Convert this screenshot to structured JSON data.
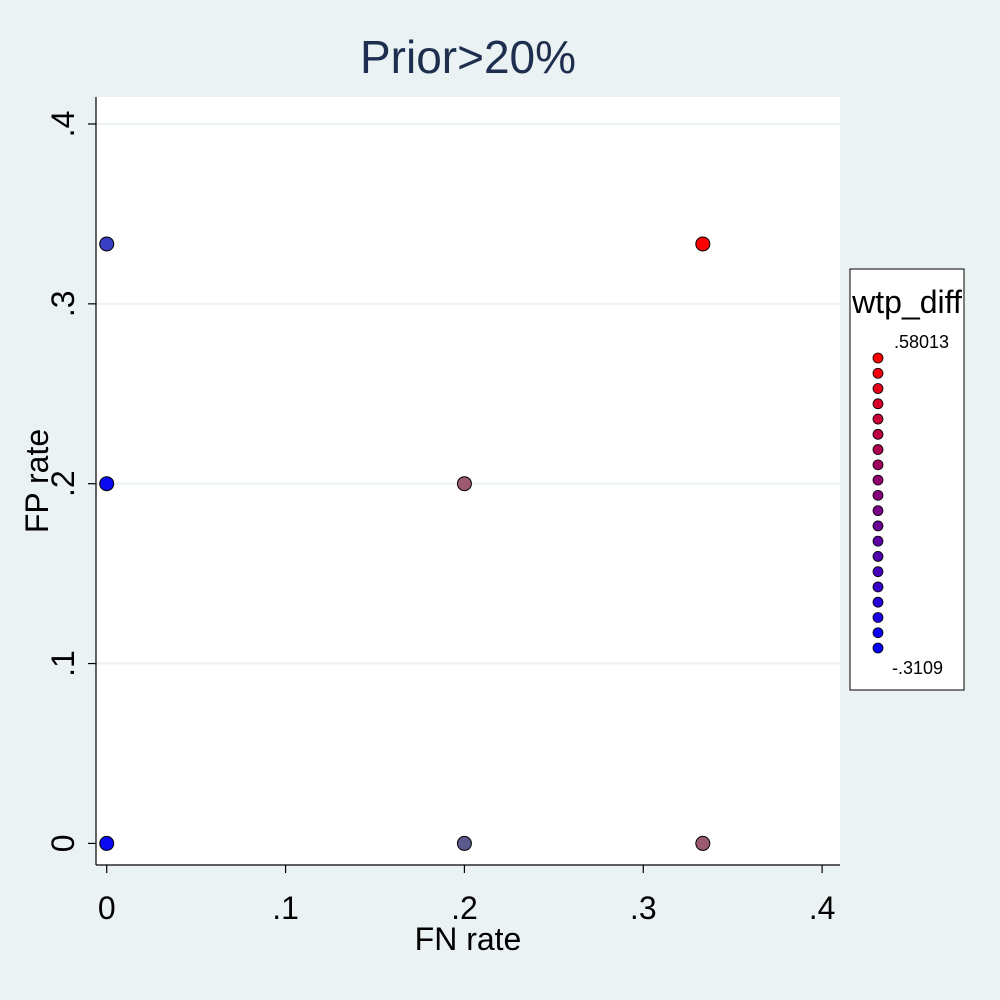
{
  "chart_data": {
    "type": "scatter",
    "title": "Prior>20%",
    "xlabel": "FN rate",
    "ylabel": "FP rate",
    "xlim": [
      -0.006,
      0.41
    ],
    "ylim": [
      -0.012,
      0.415
    ],
    "x_ticks": [
      0,
      0.1,
      0.2,
      0.3,
      0.4
    ],
    "x_tick_labels": [
      "0",
      ".1",
      ".2",
      ".3",
      ".4"
    ],
    "y_ticks": [
      0,
      0.1,
      0.2,
      0.3,
      0.4
    ],
    "y_tick_labels": [
      "0",
      ".1",
      ".2",
      ".3",
      ".4"
    ],
    "grid": "horizontal",
    "colors": {
      "low": "#0000ff",
      "high": "#ff0000",
      "background": "#eaf2f3",
      "plot_area": "#ffffff",
      "gridline": "#eaf2f3",
      "title": "#1e2e4e"
    },
    "points": [
      {
        "x": 0,
        "y": 0.3333,
        "color": "#3a3ec6"
      },
      {
        "x": 0,
        "y": 0.2,
        "color": "#0a0af5"
      },
      {
        "x": 0,
        "y": 0,
        "color": "#0a0af5"
      },
      {
        "x": 0.2,
        "y": 0.2,
        "color": "#9c5a6e"
      },
      {
        "x": 0.2,
        "y": 0,
        "color": "#5a5a8c"
      },
      {
        "x": 0.3333,
        "y": 0.3333,
        "color": "#ff0000"
      },
      {
        "x": 0.3333,
        "y": 0,
        "color": "#9c5a6e"
      }
    ],
    "legend": {
      "title": "wtp_diff",
      "position": "right",
      "max_label": ".58013",
      "min_label": "-.3109",
      "steps": 20
    }
  }
}
